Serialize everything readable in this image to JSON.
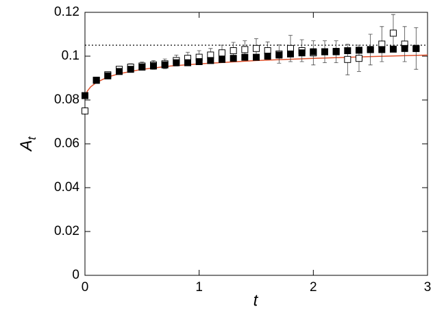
{
  "chart_data": {
    "type": "scatter",
    "xlabel": "t",
    "ylabel": "A",
    "ylabel_subscript": "t",
    "xlim": [
      0,
      3
    ],
    "ylim": [
      0,
      0.12
    ],
    "xticks": [
      0,
      1,
      2,
      3
    ],
    "yticks": [
      0,
      0.02,
      0.04,
      0.06,
      0.08,
      0.1,
      0.12
    ],
    "reference_line": {
      "value": 0.105,
      "color": "#000000"
    },
    "series": [
      {
        "style": "line",
        "color": "#e0502a",
        "x": [
          0,
          0.02,
          0.05,
          0.1,
          0.2,
          0.3,
          0.5,
          0.75,
          1,
          1.5,
          2,
          2.5,
          3
        ],
        "values": [
          0.081,
          0.084,
          0.086,
          0.088,
          0.0905,
          0.092,
          0.094,
          0.0955,
          0.0965,
          0.098,
          0.099,
          0.0998,
          0.1005
        ]
      },
      {
        "style": "open-square",
        "color": "#000000",
        "x": [
          0,
          0.1,
          0.2,
          0.3,
          0.4,
          0.5,
          0.6,
          0.7,
          0.8,
          0.9,
          1,
          1.1,
          1.2,
          1.3,
          1.4,
          1.5,
          1.6,
          1.7,
          1.8,
          1.9,
          2,
          2.1,
          2.2,
          2.3,
          2.4,
          2.5,
          2.6,
          2.7,
          2.8,
          2.9
        ],
        "values": [
          0.075,
          0.089,
          0.0915,
          0.094,
          0.095,
          0.0955,
          0.096,
          0.0965,
          0.098,
          0.099,
          0.0995,
          0.1005,
          0.1015,
          0.1025,
          0.103,
          0.1035,
          0.1025,
          0.101,
          0.1035,
          0.1025,
          0.1015,
          0.102,
          0.102,
          0.0985,
          0.099,
          0.103,
          0.1055,
          0.1105,
          0.1055,
          0.1035
        ],
        "errors": [
          0.001,
          0.001,
          0.001,
          0.0012,
          0.0015,
          0.0018,
          0.002,
          0.0022,
          0.0025,
          0.0028,
          0.003,
          0.003,
          0.0035,
          0.0038,
          0.004,
          0.0045,
          0.004,
          0.0042,
          0.006,
          0.005,
          0.0055,
          0.005,
          0.005,
          0.007,
          0.006,
          0.007,
          0.008,
          0.0085,
          0.008,
          0.0095
        ]
      },
      {
        "style": "filled-square",
        "color": "#000000",
        "x": [
          0,
          0.1,
          0.2,
          0.3,
          0.4,
          0.5,
          0.6,
          0.7,
          0.8,
          0.9,
          1,
          1.1,
          1.2,
          1.3,
          1.4,
          1.5,
          1.6,
          1.7,
          1.8,
          1.9,
          2,
          2.1,
          2.2,
          2.3,
          2.4,
          2.5,
          2.6,
          2.7,
          2.8,
          2.9
        ],
        "values": [
          0.082,
          0.089,
          0.091,
          0.093,
          0.094,
          0.095,
          0.0955,
          0.096,
          0.097,
          0.097,
          0.0975,
          0.098,
          0.0985,
          0.099,
          0.0995,
          0.0995,
          0.1,
          0.1005,
          0.101,
          0.1015,
          0.102,
          0.102,
          0.1022,
          0.1025,
          0.1027,
          0.103,
          0.103,
          0.1032,
          0.1035,
          0.1035
        ]
      }
    ]
  }
}
